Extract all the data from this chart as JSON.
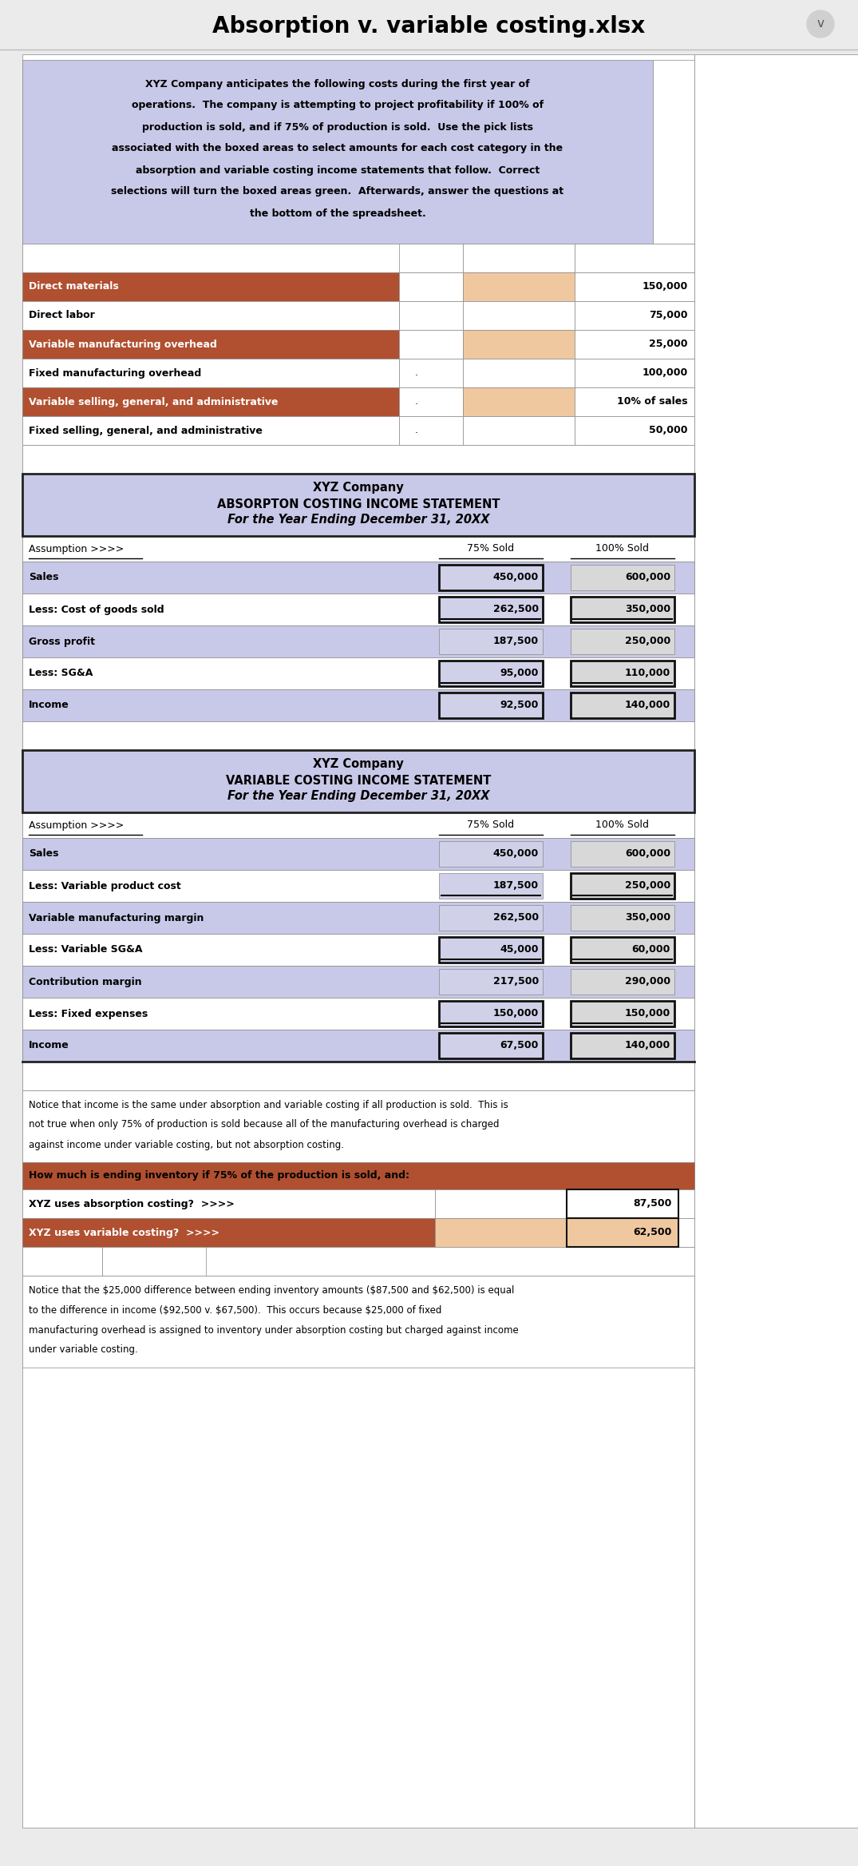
{
  "title": "Absorption v. variable costing.xlsx",
  "bg_color": "#ebebeb",
  "intro_bg": "#c8c8e8",
  "intro_text_line1": "XYZ Company anticipates the following costs during the first year of",
  "intro_text_line2": "operations.  The company is attempting to project profitability if 100% of",
  "intro_text_line3": "production is sold, and if 75% of production is sold.  Use the pick lists",
  "intro_text_line4": "associated with the boxed areas to select amounts for each cost category in the",
  "intro_text_line5": "absorption and variable costing income statements that follow.  Correct",
  "intro_text_line6": "selections will turn the boxed areas green.  Afterwards, answer the questions at",
  "intro_text_line7": "the bottom of the spreadsheet.",
  "cost_rows": [
    {
      "label": "Direct materials",
      "dot": "",
      "value": "150,000",
      "highlight": true
    },
    {
      "label": "Direct labor",
      "dot": "",
      "value": "75,000",
      "highlight": false
    },
    {
      "label": "Variable manufacturing overhead",
      "dot": "",
      "value": "25,000",
      "highlight": true
    },
    {
      "label": "Fixed manufacturing overhead",
      "dot": ".",
      "value": "100,000",
      "highlight": false
    },
    {
      "label": "Variable selling, general, and administrative",
      "dot": ".",
      "value": "10% of sales",
      "highlight": true
    },
    {
      "label": "Fixed selling, general, and administrative",
      "dot": ".",
      "value": "50,000",
      "highlight": false
    }
  ],
  "absorption_title1": "XYZ Company",
  "absorption_title2": "ABSORPTON COSTING INCOME STATEMENT",
  "absorption_title3": "For the Year Ending December 31, 20XX",
  "absorption_rows": [
    {
      "label": "Sales",
      "val75": "450,000",
      "val100": "600,000",
      "boxed75": true,
      "boxed100": false,
      "underline75": false,
      "underline100": false,
      "bg": "blue"
    },
    {
      "label": "Less: Cost of goods sold",
      "val75": "262,500",
      "val100": "350,000",
      "boxed75": true,
      "boxed100": true,
      "underline75": true,
      "underline100": true,
      "bg": "white"
    },
    {
      "label": "Gross profit",
      "val75": "187,500",
      "val100": "250,000",
      "boxed75": false,
      "boxed100": false,
      "underline75": false,
      "underline100": false,
      "bg": "blue"
    },
    {
      "label": "Less: SG&A",
      "val75": "95,000",
      "val100": "110,000",
      "boxed75": true,
      "boxed100": true,
      "underline75": true,
      "underline100": true,
      "bg": "white"
    },
    {
      "label": "Income",
      "val75": "92,500",
      "val100": "140,000",
      "boxed75": true,
      "boxed100": true,
      "underline75": false,
      "underline100": false,
      "bg": "blue"
    }
  ],
  "variable_title1": "XYZ Company",
  "variable_title2": "VARIABLE COSTING INCOME STATEMENT",
  "variable_title3": "For the Year Ending December 31, 20XX",
  "variable_rows": [
    {
      "label": "Sales",
      "val75": "450,000",
      "val100": "600,000",
      "boxed75": false,
      "boxed100": false,
      "underline75": false,
      "underline100": false,
      "bg": "blue"
    },
    {
      "label": "Less: Variable product cost",
      "val75": "187,500",
      "val100": "250,000",
      "boxed75": false,
      "boxed100": true,
      "underline75": true,
      "underline100": true,
      "bg": "white"
    },
    {
      "label": "Variable manufacturing margin",
      "val75": "262,500",
      "val100": "350,000",
      "boxed75": false,
      "boxed100": false,
      "underline75": false,
      "underline100": false,
      "bg": "blue"
    },
    {
      "label": "Less: Variable SG&A",
      "val75": "45,000",
      "val100": "60,000",
      "boxed75": true,
      "boxed100": true,
      "underline75": true,
      "underline100": true,
      "bg": "white"
    },
    {
      "label": "Contribution margin",
      "val75": "217,500",
      "val100": "290,000",
      "boxed75": false,
      "boxed100": false,
      "underline75": false,
      "underline100": false,
      "bg": "blue"
    },
    {
      "label": "Less: Fixed expenses",
      "val75": "150,000",
      "val100": "150,000",
      "boxed75": true,
      "boxed100": true,
      "underline75": true,
      "underline100": true,
      "bg": "white"
    },
    {
      "label": "Income",
      "val75": "67,500",
      "val100": "140,000",
      "boxed75": true,
      "boxed100": true,
      "underline75": false,
      "underline100": false,
      "bg": "blue"
    }
  ],
  "notice1": "Notice that income is the same under absorption and variable costing if all production is sold.  This is\nnot true when only 75% of production is sold because all of the manufacturing overhead is charged\nagainst income under variable costing, but not absorption costing.",
  "question_text": "How much is ending inventory if 75% of the production is sold, and:",
  "q_rows": [
    {
      "label": "XYZ uses absorption costing?  >>>>",
      "value": "87,500",
      "highlight": false
    },
    {
      "label": "XYZ uses variable costing?  >>>>",
      "value": "62,500",
      "highlight": true
    }
  ],
  "notice2": "Notice that the $25,000 difference between ending inventory amounts ($87,500 and $62,500) is equal\nto the difference in income ($92,500 v. $67,500).  This occurs because $25,000 of fixed\nmanufacturing overhead is assigned to inventory under absorption costing but charged against income\nunder variable costing.",
  "row_highlight_color": "#b05030",
  "peach_bg": "#f0c8a0",
  "statement_bg": "#c8c8e8",
  "white": "#ffffff",
  "light_gray": "#e8e8e8",
  "dark_border": "#222222",
  "mid_gray": "#cccccc",
  "question_bg": "#b05030",
  "col_border": "#888888"
}
